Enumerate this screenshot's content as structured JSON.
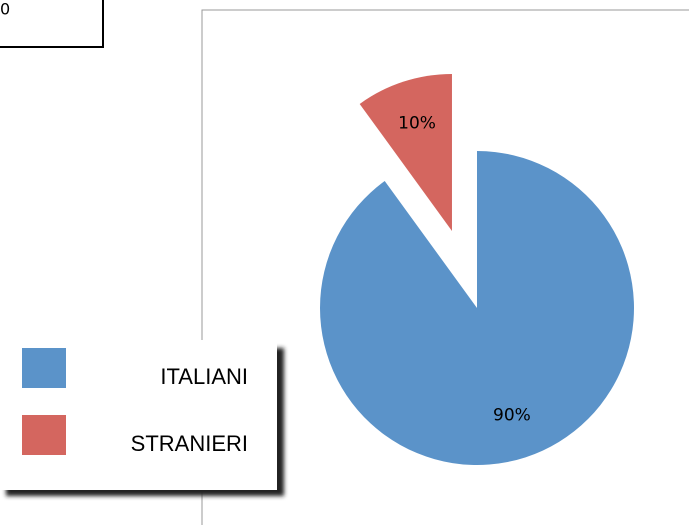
{
  "fragment": "0",
  "chart_data": {
    "type": "pie",
    "categories": [
      "ITALIANI",
      "STRANIERI"
    ],
    "values": [
      90,
      10
    ],
    "value_labels": [
      "90%",
      "10%"
    ],
    "colors": [
      "#5b93c9",
      "#d4665f"
    ],
    "explode": [
      false,
      true
    ],
    "legend": "left"
  }
}
